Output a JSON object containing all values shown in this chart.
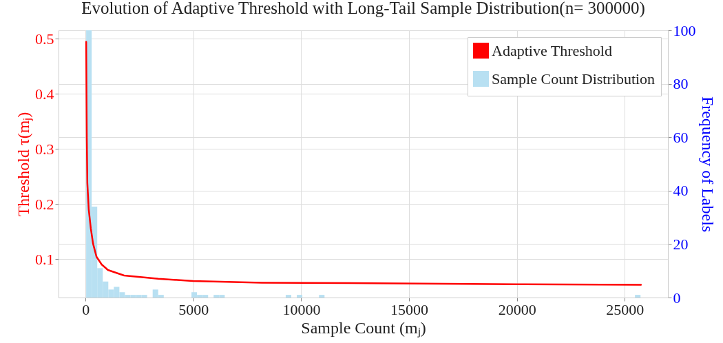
{
  "chart_data": {
    "type": "line",
    "title": "Evolution of Adaptive Threshold with Long-Tail Sample Distribution(n= 300000)",
    "xlabel": "Sample Count (mⱼ)",
    "ylabel": "Threshold τ(mⱼ)",
    "y2label": "Frequency of Labels",
    "xlim": [
      -1250,
      27000
    ],
    "xticks": [
      0,
      5000,
      10000,
      15000,
      20000,
      25000
    ],
    "ylim": [
      0.03,
      0.515
    ],
    "yticks": [
      0.1,
      0.2,
      0.3,
      0.4,
      0.5
    ],
    "y2lim": [
      0,
      100
    ],
    "y2ticks": [
      0,
      20,
      40,
      60,
      80,
      100
    ],
    "grid": true,
    "legend": "top right",
    "line_style": "solid",
    "series": [
      {
        "name": "Adaptive Threshold",
        "type": "line",
        "color": "#ff0000",
        "x": [
          32,
          60,
          85,
          150,
          245,
          350,
          510,
          750,
          1040,
          1790,
          3380,
          4980,
          8170,
          13280,
          20000,
          25750
        ],
        "values": [
          0.494,
          0.32,
          0.238,
          0.19,
          0.156,
          0.128,
          0.104,
          0.09,
          0.08,
          0.07,
          0.064,
          0.06,
          0.057,
          0.056,
          0.054,
          0.053
        ]
      },
      {
        "name": "Sample Count Distribution",
        "type": "histogram",
        "axis": "y2",
        "color": "#b8e0f2",
        "bins": [
          30,
          287,
          544,
          801,
          1058,
          1315,
          1572,
          1829,
          2086,
          2343,
          2600,
          2857,
          3114,
          3371,
          3628,
          3885,
          4142,
          4399,
          4656,
          4913,
          5170,
          5427,
          5684,
          5941,
          6198,
          6455,
          6712,
          6969,
          7226,
          7483,
          7740,
          7997,
          8254,
          8511,
          8768,
          9025,
          9282,
          9539,
          9796,
          10053,
          10310,
          10567,
          10824,
          11081,
          11338,
          11595,
          11852,
          12109,
          12366,
          12623,
          12880,
          13137,
          13394,
          13651,
          13908,
          14165,
          14422,
          14679,
          14936,
          15193,
          15450,
          15707,
          15964,
          16221,
          16478,
          16735,
          16992,
          17249,
          17506,
          17763,
          18020,
          18277,
          18534,
          18791,
          19048,
          19305,
          19562,
          19819,
          20076,
          20333,
          20590,
          20847,
          21104,
          21361,
          21618,
          21875,
          22132,
          22389,
          22646,
          22903,
          23160,
          23417,
          23674,
          23931,
          24188,
          24445,
          24702,
          24959,
          25216,
          25473,
          25730
        ],
        "values": [
          100,
          34,
          11,
          6,
          3,
          4,
          2,
          1,
          1,
          1,
          1,
          0,
          3,
          1,
          0,
          0,
          0,
          0,
          0,
          2,
          1,
          1,
          0,
          1,
          1,
          0,
          0,
          0,
          0,
          0,
          0,
          0,
          0,
          0,
          0,
          0,
          1,
          0,
          1,
          0,
          0,
          0,
          1,
          0,
          0,
          0,
          0,
          0,
          0,
          0,
          0,
          0,
          0,
          0,
          0,
          0,
          0,
          0,
          0,
          0,
          0,
          0,
          0,
          0,
          0,
          0,
          0,
          0,
          0,
          0,
          0,
          0,
          0,
          0,
          0,
          0,
          0,
          0,
          0,
          0,
          0,
          0,
          0,
          0,
          0,
          0,
          0,
          0,
          0,
          0,
          0,
          0,
          0,
          0,
          0,
          0,
          0,
          0,
          0,
          1
        ]
      }
    ]
  }
}
